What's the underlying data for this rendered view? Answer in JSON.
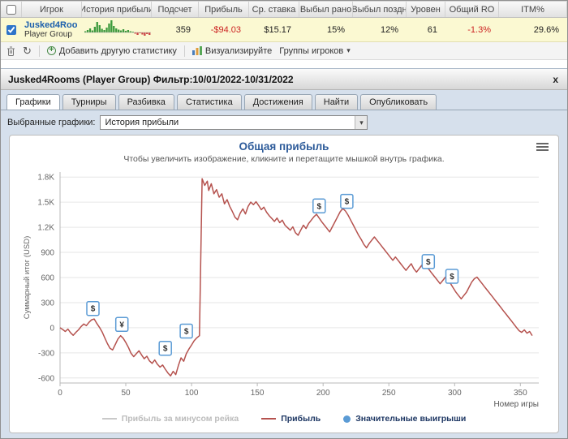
{
  "table": {
    "headers": [
      "Игрок",
      "История прибыли",
      "Подсчет",
      "Прибыль",
      "Ср. ставка",
      "Выбыл рано",
      "Выбыл поздн",
      "Уровен",
      "Общий RO",
      "ITM%"
    ],
    "row": {
      "selected": true,
      "player_name": "Jusked4Roo",
      "player_sub": "Player Group",
      "count": "359",
      "profit": "-$94.03",
      "avg_stake": "$15.17",
      "busted_early": "15%",
      "busted_late": "12%",
      "level": "61",
      "total_roi": "-1.3%",
      "itm_pct": "29.6%"
    },
    "sparkline": [
      3,
      6,
      10,
      5,
      14,
      26,
      18,
      9,
      6,
      12,
      22,
      30,
      16,
      10,
      7,
      5,
      8,
      4,
      6,
      3,
      2,
      -3,
      -6,
      -2,
      -5,
      -8,
      -4,
      -6
    ]
  },
  "toolbar": {
    "add_stat_label": "Добавить другую статистику",
    "visualize_label": "Визуализируйте",
    "player_groups_label": "Группы игроков"
  },
  "panel": {
    "title": "Jusked4Rooms (Player Group) Фильтр:10/01/2022-10/31/2022",
    "close_label": "x",
    "tabs": [
      "Графики",
      "Турниры",
      "Разбивка",
      "Статистика",
      "Достижения",
      "Найти",
      "Опубликовать"
    ],
    "active_tab": "Графики",
    "selected_graphs_label": "Выбранные графики:",
    "graph_select_value": "История прибыли"
  },
  "colors": {
    "negative_red": "#cc2222",
    "link_blue": "#1b5fad",
    "selected_row_bg": "#fbf9d2",
    "panel_bg": "#d6e0ec",
    "profit_line": "#b5524e",
    "marker_blue": "#5b9bd5",
    "sparkline_green": "#3c9a3c",
    "sparkline_red": "#cc4444"
  },
  "chart_data": {
    "type": "line",
    "title": "Общая прибыль",
    "subtitle": "Чтобы увеличить изображение, кликните и перетащите мышкой внутрь графика.",
    "xlabel": "Номер игры",
    "ylabel": "Суммарный итог (USD)",
    "xlim": [
      0,
      364
    ],
    "ylim": [
      -660,
      1860
    ],
    "xticks": [
      0,
      50,
      100,
      150,
      200,
      250,
      300,
      350
    ],
    "yticks": [
      -600,
      -300,
      0,
      300,
      600,
      900,
      1200,
      1500,
      1800
    ],
    "ytick_labels": [
      "-600",
      "-300",
      "0",
      "300",
      "600",
      "900",
      "1.2K",
      "1.5K",
      "1.8K"
    ],
    "grid": "horizontal",
    "legend_position": "bottom",
    "legend": [
      {
        "label": "Прибыль за минусом рейка",
        "color": "#c9c9c9",
        "type": "line",
        "muted": true
      },
      {
        "label": "Прибыль",
        "color": "#b5524e",
        "type": "line",
        "muted": false
      },
      {
        "label": "Значительные выигрыши",
        "color": "#5b9bd5",
        "type": "marker",
        "muted": false
      }
    ],
    "series": [
      {
        "name": "Прибыль",
        "color": "#b5524e",
        "points": [
          [
            0,
            0
          ],
          [
            2,
            -20
          ],
          [
            4,
            -45
          ],
          [
            6,
            -15
          ],
          [
            8,
            -60
          ],
          [
            10,
            -90
          ],
          [
            12,
            -55
          ],
          [
            14,
            -25
          ],
          [
            16,
            15
          ],
          [
            18,
            45
          ],
          [
            20,
            25
          ],
          [
            22,
            65
          ],
          [
            24,
            95
          ],
          [
            26,
            105
          ],
          [
            28,
            50
          ],
          [
            30,
            5
          ],
          [
            32,
            -50
          ],
          [
            34,
            -120
          ],
          [
            36,
            -190
          ],
          [
            38,
            -245
          ],
          [
            40,
            -265
          ],
          [
            42,
            -200
          ],
          [
            44,
            -135
          ],
          [
            46,
            -95
          ],
          [
            48,
            -125
          ],
          [
            50,
            -175
          ],
          [
            52,
            -235
          ],
          [
            54,
            -305
          ],
          [
            56,
            -345
          ],
          [
            58,
            -310
          ],
          [
            60,
            -275
          ],
          [
            62,
            -325
          ],
          [
            64,
            -370
          ],
          [
            66,
            -340
          ],
          [
            68,
            -395
          ],
          [
            70,
            -425
          ],
          [
            72,
            -385
          ],
          [
            74,
            -435
          ],
          [
            76,
            -470
          ],
          [
            78,
            -445
          ],
          [
            80,
            -495
          ],
          [
            82,
            -540
          ],
          [
            84,
            -575
          ],
          [
            86,
            -520
          ],
          [
            88,
            -560
          ],
          [
            90,
            -450
          ],
          [
            92,
            -360
          ],
          [
            94,
            -400
          ],
          [
            96,
            -310
          ],
          [
            98,
            -255
          ],
          [
            100,
            -205
          ],
          [
            102,
            -155
          ],
          [
            104,
            -120
          ],
          [
            106,
            -95
          ],
          [
            108,
            1780
          ],
          [
            110,
            1700
          ],
          [
            112,
            1750
          ],
          [
            113,
            1640
          ],
          [
            115,
            1720
          ],
          [
            117,
            1600
          ],
          [
            119,
            1650
          ],
          [
            121,
            1560
          ],
          [
            123,
            1600
          ],
          [
            125,
            1480
          ],
          [
            127,
            1530
          ],
          [
            129,
            1450
          ],
          [
            131,
            1390
          ],
          [
            133,
            1320
          ],
          [
            135,
            1290
          ],
          [
            137,
            1370
          ],
          [
            139,
            1420
          ],
          [
            141,
            1360
          ],
          [
            143,
            1450
          ],
          [
            145,
            1500
          ],
          [
            147,
            1470
          ],
          [
            149,
            1505
          ],
          [
            151,
            1460
          ],
          [
            153,
            1410
          ],
          [
            155,
            1440
          ],
          [
            157,
            1380
          ],
          [
            159,
            1340
          ],
          [
            161,
            1305
          ],
          [
            163,
            1270
          ],
          [
            165,
            1310
          ],
          [
            167,
            1255
          ],
          [
            169,
            1285
          ],
          [
            171,
            1225
          ],
          [
            173,
            1195
          ],
          [
            175,
            1165
          ],
          [
            177,
            1205
          ],
          [
            179,
            1135
          ],
          [
            181,
            1105
          ],
          [
            183,
            1165
          ],
          [
            185,
            1225
          ],
          [
            187,
            1185
          ],
          [
            189,
            1245
          ],
          [
            191,
            1285
          ],
          [
            193,
            1325
          ],
          [
            195,
            1355
          ],
          [
            197,
            1310
          ],
          [
            199,
            1265
          ],
          [
            201,
            1225
          ],
          [
            203,
            1185
          ],
          [
            205,
            1145
          ],
          [
            207,
            1205
          ],
          [
            209,
            1265
          ],
          [
            211,
            1325
          ],
          [
            213,
            1385
          ],
          [
            215,
            1425
          ],
          [
            217,
            1395
          ],
          [
            219,
            1345
          ],
          [
            221,
            1285
          ],
          [
            223,
            1225
          ],
          [
            225,
            1165
          ],
          [
            227,
            1105
          ],
          [
            229,
            1055
          ],
          [
            231,
            995
          ],
          [
            233,
            955
          ],
          [
            235,
            1005
          ],
          [
            237,
            1045
          ],
          [
            239,
            1085
          ],
          [
            241,
            1045
          ],
          [
            243,
            1005
          ],
          [
            245,
            965
          ],
          [
            247,
            925
          ],
          [
            249,
            885
          ],
          [
            251,
            845
          ],
          [
            253,
            805
          ],
          [
            255,
            845
          ],
          [
            257,
            805
          ],
          [
            259,
            765
          ],
          [
            261,
            725
          ],
          [
            263,
            685
          ],
          [
            265,
            725
          ],
          [
            267,
            765
          ],
          [
            269,
            705
          ],
          [
            271,
            665
          ],
          [
            273,
            705
          ],
          [
            275,
            745
          ],
          [
            277,
            785
          ],
          [
            279,
            725
          ],
          [
            281,
            685
          ],
          [
            283,
            645
          ],
          [
            285,
            605
          ],
          [
            287,
            565
          ],
          [
            289,
            525
          ],
          [
            291,
            565
          ],
          [
            293,
            605
          ],
          [
            295,
            565
          ],
          [
            297,
            525
          ],
          [
            299,
            475
          ],
          [
            301,
            425
          ],
          [
            303,
            385
          ],
          [
            305,
            345
          ],
          [
            307,
            385
          ],
          [
            309,
            425
          ],
          [
            311,
            485
          ],
          [
            313,
            545
          ],
          [
            315,
            585
          ],
          [
            317,
            605
          ],
          [
            319,
            565
          ],
          [
            321,
            525
          ],
          [
            323,
            485
          ],
          [
            325,
            445
          ],
          [
            327,
            405
          ],
          [
            329,
            365
          ],
          [
            331,
            325
          ],
          [
            333,
            285
          ],
          [
            335,
            245
          ],
          [
            337,
            205
          ],
          [
            339,
            165
          ],
          [
            341,
            125
          ],
          [
            343,
            85
          ],
          [
            345,
            45
          ],
          [
            347,
            5
          ],
          [
            349,
            -35
          ],
          [
            351,
            -55
          ],
          [
            353,
            -25
          ],
          [
            355,
            -65
          ],
          [
            357,
            -45
          ],
          [
            359,
            -94
          ]
        ]
      }
    ],
    "markers": [
      {
        "x": 25,
        "y": 230,
        "symbol": "$"
      },
      {
        "x": 47,
        "y": 40,
        "symbol": "¥"
      },
      {
        "x": 80,
        "y": -245,
        "symbol": "$"
      },
      {
        "x": 96,
        "y": -40,
        "symbol": "$"
      },
      {
        "x": 197,
        "y": 1455,
        "symbol": "$"
      },
      {
        "x": 218,
        "y": 1510,
        "symbol": "$"
      },
      {
        "x": 280,
        "y": 790,
        "symbol": "$"
      },
      {
        "x": 298,
        "y": 615,
        "symbol": "$"
      }
    ]
  }
}
